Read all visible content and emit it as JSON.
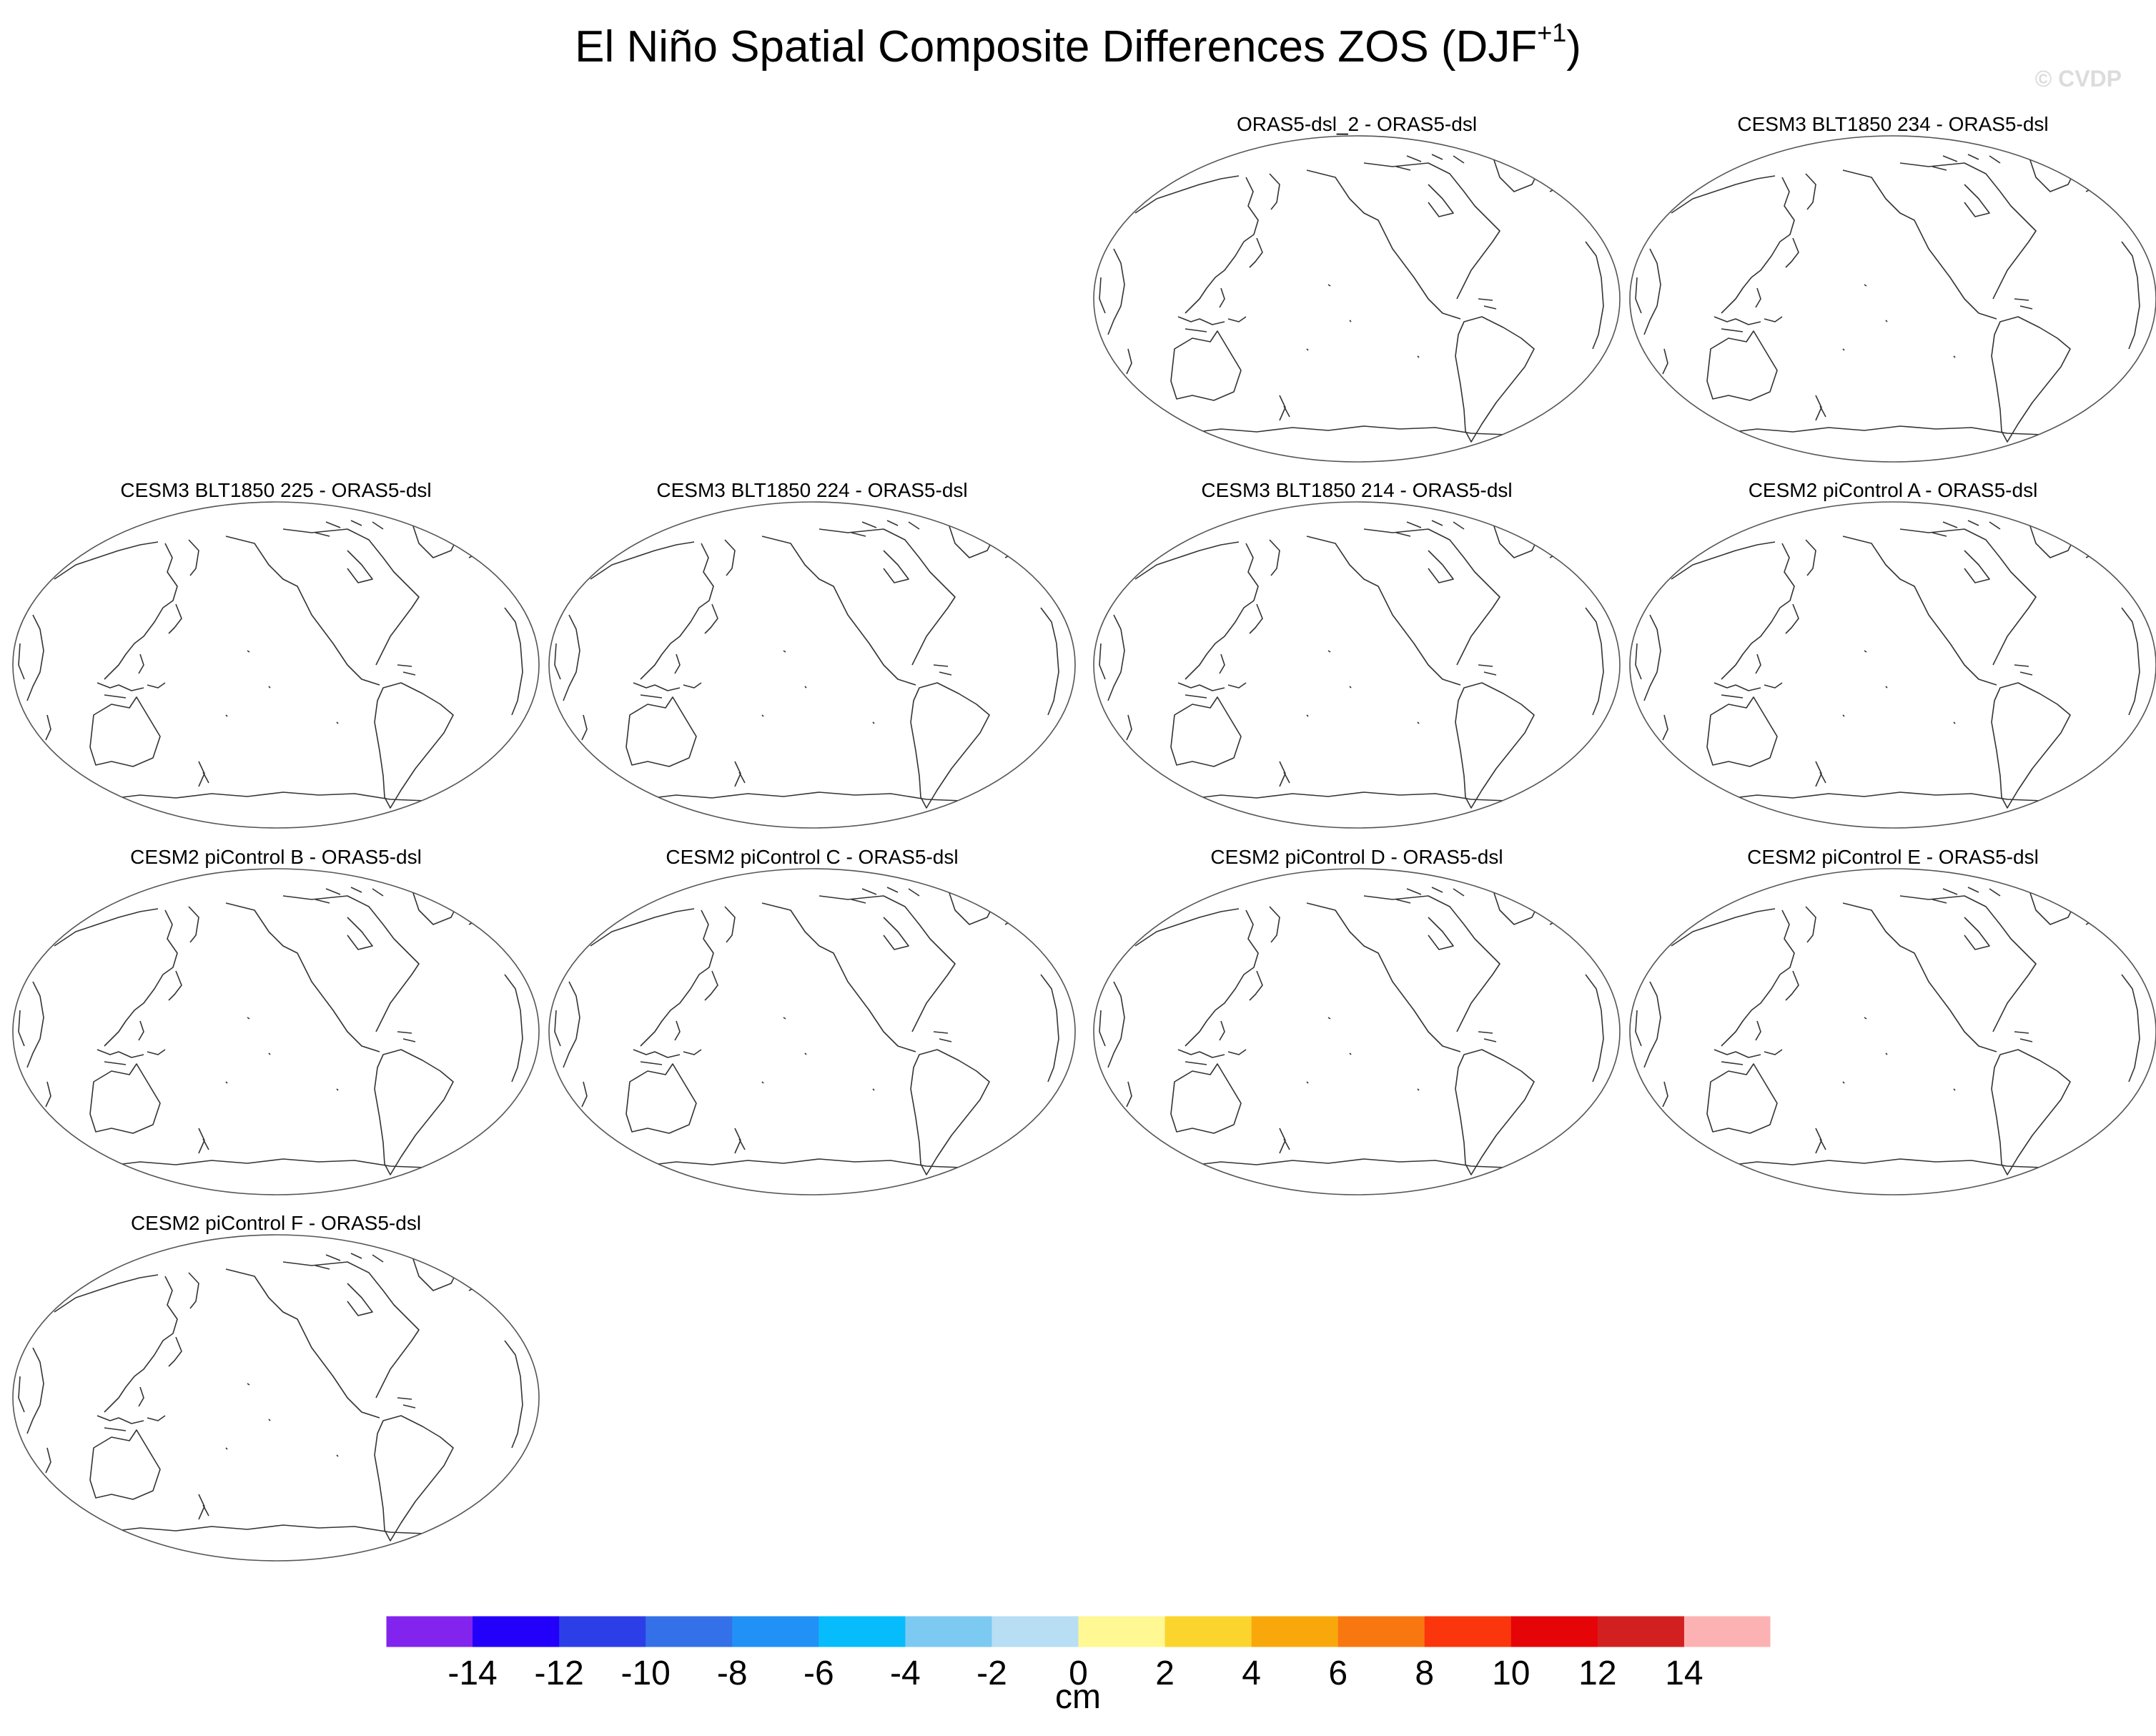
{
  "figure": {
    "title_main": "El Niño Spatial Composite Differences ZOS (DJF",
    "title_sup": "+1",
    "title_close": ")",
    "watermark": "© CVDP"
  },
  "chart_data": {
    "type": "heatmap",
    "title": "El Niño Spatial Composite Differences ZOS (DJF+1)",
    "projection": "global map, Pacific-centered",
    "panels": [
      {
        "title": "ORAS5-dsl_2 - ORAS5-dsl"
      },
      {
        "title": "CESM3 BLT1850 234 - ORAS5-dsl"
      },
      {
        "title": "CESM3 BLT1850 225 - ORAS5-dsl"
      },
      {
        "title": "CESM3 BLT1850 224 - ORAS5-dsl"
      },
      {
        "title": "CESM3 BLT1850 214 - ORAS5-dsl"
      },
      {
        "title": "CESM2 piControl A - ORAS5-dsl"
      },
      {
        "title": "CESM2 piControl B - ORAS5-dsl"
      },
      {
        "title": "CESM2 piControl C - ORAS5-dsl"
      },
      {
        "title": "CESM2 piControl D - ORAS5-dsl"
      },
      {
        "title": "CESM2 piControl E - ORAS5-dsl"
      },
      {
        "title": "CESM2 piControl F - ORAS5-dsl"
      }
    ],
    "colorbar": {
      "units": "cm",
      "levels": [
        -14,
        -12,
        -10,
        -8,
        -6,
        -4,
        -2,
        0,
        2,
        4,
        6,
        8,
        10,
        12,
        14
      ],
      "tick_labels": [
        "-14",
        "-12",
        "-10",
        "-8",
        "-6",
        "-4",
        "-2",
        "0",
        "2",
        "4",
        "6",
        "8",
        "10",
        "12",
        "14"
      ],
      "colors": [
        "#8224ee",
        "#2200fa",
        "#2c3ee8",
        "#3470e8",
        "#2291f6",
        "#06bcfb",
        "#7ccaf2",
        "#b7def3",
        "#fff893",
        "#fbd52e",
        "#f9a80c",
        "#f97710",
        "#fb350c",
        "#e50408",
        "#d22020",
        "#fcb2b2"
      ]
    }
  }
}
